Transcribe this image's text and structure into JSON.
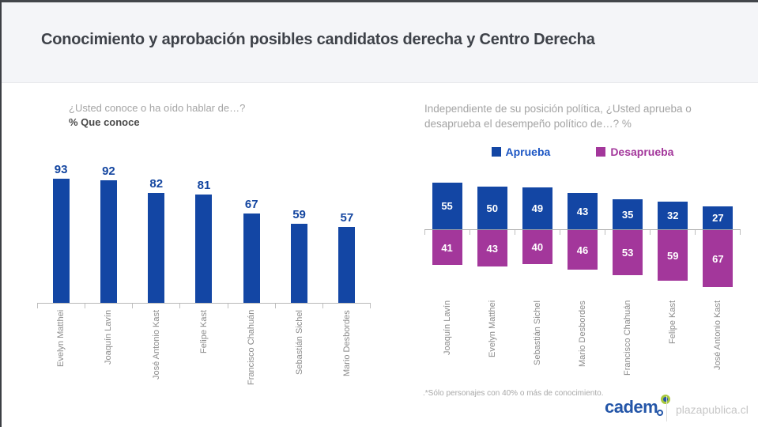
{
  "page": {
    "title": "Conocimiento y aprobación posibles candidatos derecha y Centro Derecha"
  },
  "footer": {
    "note": ".*Sólo personajes con 40% o más de conocimiento.",
    "brand": "cadem",
    "site": "plazapublica.cl"
  },
  "colors": {
    "approve_blue": "#1346a4",
    "disapprove_purple": "#a3379b",
    "axis_gray": "#b9b9b9",
    "header_band": "#f4f5f8"
  },
  "chart_data": [
    {
      "type": "bar",
      "question": "¿Usted conoce o ha oído hablar de…?",
      "title": "% Que conoce",
      "categories": [
        "Evelyn Matthei",
        "Joaquín Lavín",
        "José Antonio Kast",
        "Felipe Kast",
        "Francisco Chahuán",
        "Sebastián Sichel",
        "Mario Desbordes"
      ],
      "values": [
        93,
        92,
        82,
        81,
        67,
        59,
        57
      ],
      "ylim": [
        0,
        100
      ],
      "grid": false,
      "legend_position": "none",
      "bar_color": "#1346a4",
      "value_label_color": "#1446a0"
    },
    {
      "type": "bar",
      "subtype": "diverging",
      "title": "Independiente de su posición política, ¿Usted aprueba o desaprueba el desempeño político de…? %",
      "categories": [
        "Joaquín Lavín",
        "Evelyn Matthei",
        "Sebastián Sichel",
        "Mario Desbordes",
        "Francisco Chahuán",
        "Felipe Kast",
        "José Antonio Kast"
      ],
      "series": [
        {
          "name": "Aprueba",
          "values": [
            55,
            50,
            49,
            43,
            35,
            32,
            27
          ],
          "color": "#1346a4",
          "text_color": "#1c56c4"
        },
        {
          "name": "Desaprueba",
          "values": [
            41,
            43,
            40,
            46,
            53,
            59,
            67
          ],
          "color": "#a3379b",
          "text_color": "#a3379b"
        }
      ],
      "ylim": [
        -100,
        100
      ],
      "grid": false,
      "legend_position": "top"
    }
  ]
}
